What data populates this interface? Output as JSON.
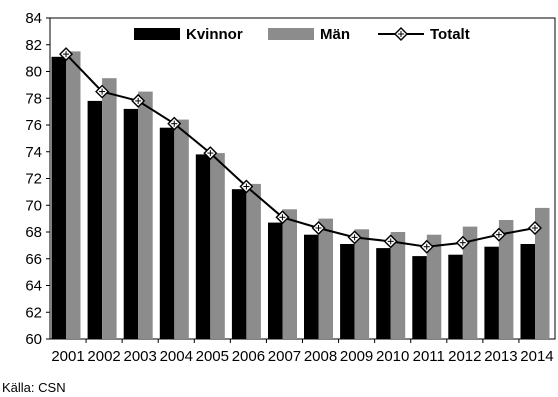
{
  "chart_data": {
    "type": "bar",
    "categories": [
      "2001",
      "2002",
      "2003",
      "2004",
      "2005",
      "2006",
      "2007",
      "2008",
      "2009",
      "2010",
      "2011",
      "2012",
      "2013",
      "2014"
    ],
    "series": [
      {
        "name": "Kvinnor",
        "kind": "bar",
        "color": "#000000",
        "values": [
          81.1,
          77.8,
          77.2,
          75.8,
          73.8,
          71.2,
          68.7,
          67.8,
          67.1,
          66.8,
          66.2,
          66.3,
          66.9,
          67.1
        ]
      },
      {
        "name": "Män",
        "kind": "bar",
        "color": "#8c8c8c",
        "values": [
          81.5,
          79.5,
          78.5,
          76.4,
          73.9,
          71.6,
          69.7,
          69.0,
          68.2,
          68.0,
          67.8,
          68.4,
          68.9,
          69.8
        ]
      },
      {
        "name": "Totalt",
        "kind": "line",
        "color": "#000000",
        "values": [
          81.3,
          78.5,
          77.8,
          76.1,
          73.9,
          71.4,
          69.1,
          68.3,
          67.6,
          67.3,
          66.9,
          67.2,
          67.8,
          68.3
        ]
      }
    ],
    "y_ticks": [
      "60",
      "62",
      "64",
      "66",
      "68",
      "70",
      "72",
      "74",
      "76",
      "78",
      "80",
      "82",
      "84"
    ],
    "ylim": [
      60,
      84
    ],
    "grid": false,
    "legend_position": "top"
  },
  "source": "Källa: CSN"
}
